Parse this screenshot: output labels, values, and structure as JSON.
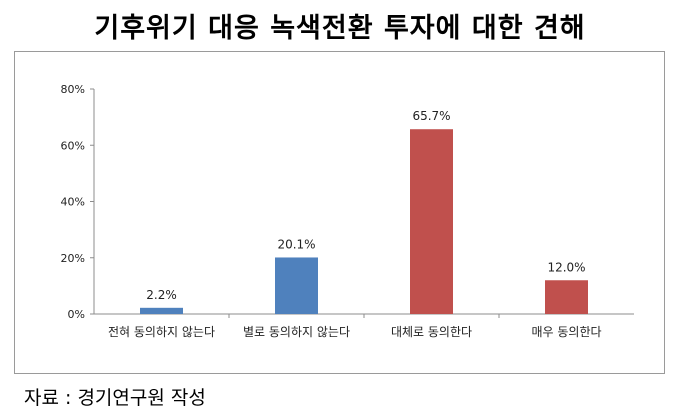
{
  "title": "기후위기 대응 녹색전환 투자에 대한 견해",
  "source": "자료 : 경기연구원 작성",
  "chart_data": {
    "type": "bar",
    "categories": [
      "전혀 동의하지 않는다",
      "별로 동의하지 않는다",
      "대체로 동의한다",
      "매우 동의한다"
    ],
    "values": [
      2.2,
      20.1,
      65.7,
      12.0
    ],
    "value_labels": [
      "2.2%",
      "20.1%",
      "65.7%",
      "12.0%"
    ],
    "bar_colors": [
      "#4f81bd",
      "#4f81bd",
      "#c0504d",
      "#c0504d"
    ],
    "ylim": [
      0,
      80
    ],
    "yticks": [
      0,
      20,
      40,
      60,
      80
    ],
    "ytick_labels": [
      "0%",
      "20%",
      "40%",
      "60%",
      "80%"
    ],
    "grid": false,
    "legend": "none"
  }
}
